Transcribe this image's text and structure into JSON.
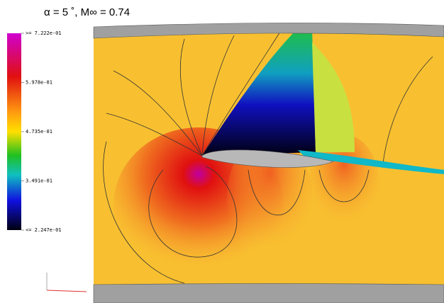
{
  "chart_data": {
    "type": "contour",
    "title": "α = 5 ˚, M∞ = 0.74",
    "colorbar": {
      "lim": [
        0.2247,
        0.7222
      ],
      "ticks": [
        {
          "value": 0.7222,
          "label": ">= 7.222e-01"
        },
        {
          "value": 0.5978,
          "label": "5.978e-01"
        },
        {
          "value": 0.4735,
          "label": "4.735e-01"
        },
        {
          "value": 0.3491,
          "label": "3.491e-01"
        },
        {
          "value": 0.2247,
          "label": "<= 2.247e-01"
        }
      ]
    }
  }
}
